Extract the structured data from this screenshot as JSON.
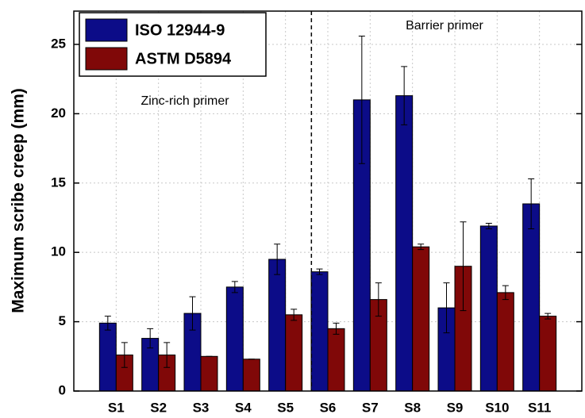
{
  "chart_data": {
    "type": "bar",
    "ylabel": "Maximum scribe creep (mm)",
    "categories": [
      "S1",
      "S2",
      "S3",
      "S4",
      "S5",
      "S6",
      "S7",
      "S8",
      "S9",
      "S10",
      "S11"
    ],
    "series": [
      {
        "name": "ISO 12944-9",
        "color": "#0c0c88",
        "values": [
          4.9,
          3.8,
          5.6,
          7.5,
          9.5,
          8.6,
          21.0,
          21.3,
          6.0,
          11.9,
          13.5
        ],
        "errors": [
          0.5,
          0.7,
          1.2,
          0.4,
          1.1,
          0.2,
          4.6,
          2.1,
          1.8,
          0.2,
          1.8
        ]
      },
      {
        "name": "ASTM D5894",
        "color": "#800808",
        "values": [
          2.6,
          2.6,
          2.5,
          2.3,
          5.5,
          4.5,
          6.6,
          10.4,
          9.0,
          7.1,
          5.4
        ],
        "errors": [
          0.9,
          0.9,
          0,
          0,
          0.4,
          0.4,
          1.2,
          0.2,
          3.2,
          0.5,
          0.2
        ]
      }
    ],
    "annotations": [
      "Zinc-rich primer",
      "Barrier primer"
    ],
    "ylim": [
      0,
      27.4
    ],
    "yticks": [
      0,
      5,
      10,
      15,
      20,
      25
    ],
    "grid": true,
    "legend": "upper-left"
  }
}
